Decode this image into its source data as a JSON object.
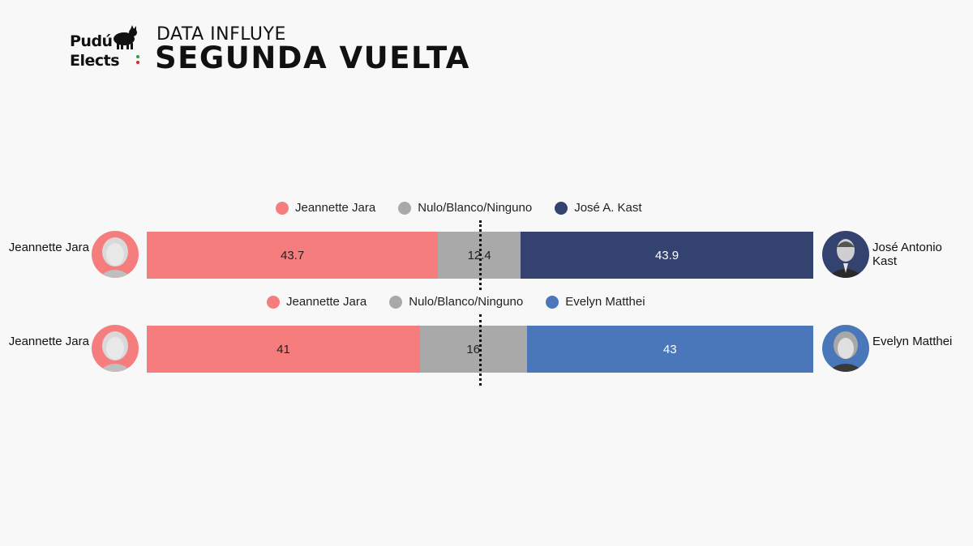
{
  "header": {
    "logo_line1": "Pudú",
    "logo_line2": "Elects",
    "kicker": "DATA INFLUYE",
    "title": "SEGUNDA VUELTA"
  },
  "colors": {
    "jara": "#f57d7e",
    "nulo": "#a9a9a9",
    "kast": "#34426f",
    "matthei": "#4a77b9",
    "logo_green": "#2e9b47",
    "logo_red": "#d6282c"
  },
  "icons": [
    "sheep-logo-icon",
    "jara-portrait-icon",
    "kast-portrait-icon",
    "matthei-portrait-icon"
  ],
  "chart_data": [
    {
      "type": "bar",
      "stacked": true,
      "orientation": "horizontal",
      "xlim": [
        0,
        100
      ],
      "reference_line": 50,
      "left_candidate": "Jeannette Jara",
      "right_candidate": "José Antonio Kast",
      "series": [
        {
          "name": "Jeannette Jara",
          "value": 43.7,
          "label": "43.7",
          "color": "#f57d7e",
          "text_color": "#222222"
        },
        {
          "name": "Nulo/Blanco/Ninguno",
          "value": 12.4,
          "label": "12.4",
          "color": "#a9a9a9",
          "text_color": "#222222"
        },
        {
          "name": "José A. Kast",
          "value": 43.9,
          "label": "43.9",
          "color": "#34426f",
          "text_color": "#ffffff"
        }
      ]
    },
    {
      "type": "bar",
      "stacked": true,
      "orientation": "horizontal",
      "xlim": [
        0,
        100
      ],
      "reference_line": 50,
      "left_candidate": "Jeannette Jara",
      "right_candidate": "Evelyn Matthei",
      "series": [
        {
          "name": "Jeannette Jara",
          "value": 41,
          "label": "41",
          "color": "#f57d7e",
          "text_color": "#222222"
        },
        {
          "name": "Nulo/Blanco/Ninguno",
          "value": 16,
          "label": "16",
          "color": "#a9a9a9",
          "text_color": "#222222"
        },
        {
          "name": "Evelyn Matthei",
          "value": 43,
          "label": "43",
          "color": "#4a77b9",
          "text_color": "#ffffff"
        }
      ]
    }
  ]
}
